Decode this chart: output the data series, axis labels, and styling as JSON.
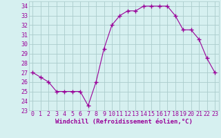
{
  "x": [
    0,
    1,
    2,
    3,
    4,
    5,
    6,
    7,
    8,
    9,
    10,
    11,
    12,
    13,
    14,
    15,
    16,
    17,
    18,
    19,
    20,
    21,
    22,
    23
  ],
  "y": [
    27,
    26.5,
    26,
    25,
    25,
    25,
    25,
    23.5,
    26,
    29.5,
    32,
    33,
    33.5,
    33.5,
    34,
    34,
    34,
    34,
    33,
    31.5,
    31.5,
    30.5,
    28.5,
    27
  ],
  "line_color": "#990099",
  "marker": "+",
  "marker_size": 4,
  "bg_color": "#d6f0f0",
  "grid_color": "#aacccc",
  "xlabel": "Windchill (Refroidissement éolien,°C)",
  "xlabel_color": "#990099",
  "xlabel_fontsize": 6.5,
  "tick_fontsize": 6,
  "ylim": [
    23,
    34.5
  ],
  "yticks": [
    23,
    24,
    25,
    26,
    27,
    28,
    29,
    30,
    31,
    32,
    33,
    34
  ],
  "xticks": [
    0,
    1,
    2,
    3,
    4,
    5,
    6,
    7,
    8,
    9,
    10,
    11,
    12,
    13,
    14,
    15,
    16,
    17,
    18,
    19,
    20,
    21,
    22,
    23
  ],
  "xlim": [
    -0.5,
    23.5
  ],
  "tick_color": "#990099",
  "spine_color": "#aacccc"
}
